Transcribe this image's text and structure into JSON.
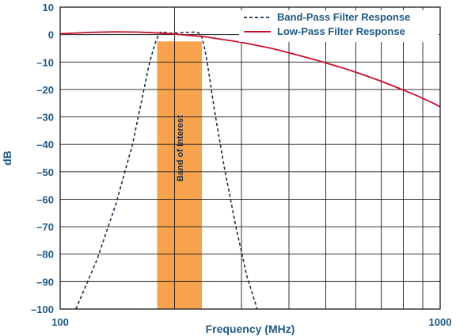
{
  "chart_data": {
    "type": "line",
    "xlabel": "Frequency (MHz)",
    "ylabel": "dB",
    "x_scale": "log",
    "xlim": [
      100,
      1000
    ],
    "ylim": [
      -100,
      10
    ],
    "x_tick_labels": [
      {
        "value": 100,
        "label": "100"
      },
      {
        "value": 1000,
        "label": "1000"
      }
    ],
    "x_gridlines": [
      200,
      300,
      400,
      500,
      600,
      700,
      800,
      900
    ],
    "y_ticks": [
      {
        "value": 10,
        "label": "10"
      },
      {
        "value": 0,
        "label": "0"
      },
      {
        "value": -10,
        "label": "–10"
      },
      {
        "value": -20,
        "label": "–20"
      },
      {
        "value": -30,
        "label": "–30"
      },
      {
        "value": -40,
        "label": "–40"
      },
      {
        "value": -50,
        "label": "–50"
      },
      {
        "value": -60,
        "label": "–60"
      },
      {
        "value": -70,
        "label": "–70"
      },
      {
        "value": -80,
        "label": "–80"
      },
      {
        "value": -90,
        "label": "–90"
      },
      {
        "value": -100,
        "label": "–100"
      }
    ],
    "grid": true,
    "legend_position": "top-right",
    "colors": {
      "axis_text": "#1f5a86",
      "grid": "#1a1a1a",
      "band": "#f7a24c",
      "lowpass": "#c8102e",
      "bandpass": "#1a2f4a"
    },
    "series": [
      {
        "name": "Band-Pass Filter Response",
        "style": "dashed",
        "x": [
          110,
          125,
          140,
          155,
          165,
          172,
          178,
          182,
          185,
          188,
          195,
          205,
          215,
          225,
          232,
          236,
          240,
          245,
          255,
          270,
          290,
          310,
          330
        ],
        "y": [
          -100,
          -82,
          -62,
          -40,
          -22,
          -10,
          -3,
          0.5,
          1,
          0.8,
          0.5,
          0.6,
          0.8,
          0.9,
          0.6,
          -1,
          -5,
          -12,
          -28,
          -48,
          -70,
          -88,
          -100
        ]
      },
      {
        "name": "Low-Pass Filter Response",
        "style": "solid",
        "x": [
          100,
          120,
          140,
          160,
          180,
          200,
          240,
          300,
          360,
          420,
          480,
          550,
          620,
          700,
          780,
          860,
          940,
          1000
        ],
        "y": [
          0.3,
          0.8,
          1.0,
          0.9,
          0.6,
          0.2,
          -0.8,
          -2.8,
          -5.0,
          -7.4,
          -9.6,
          -12.0,
          -14.4,
          -17.0,
          -19.6,
          -22.0,
          -24.4,
          -26.3
        ]
      }
    ],
    "band": {
      "label": "Band of Interest",
      "x_start": 180,
      "x_end": 236,
      "y_top": -2.5,
      "y_bottom": -100
    }
  }
}
